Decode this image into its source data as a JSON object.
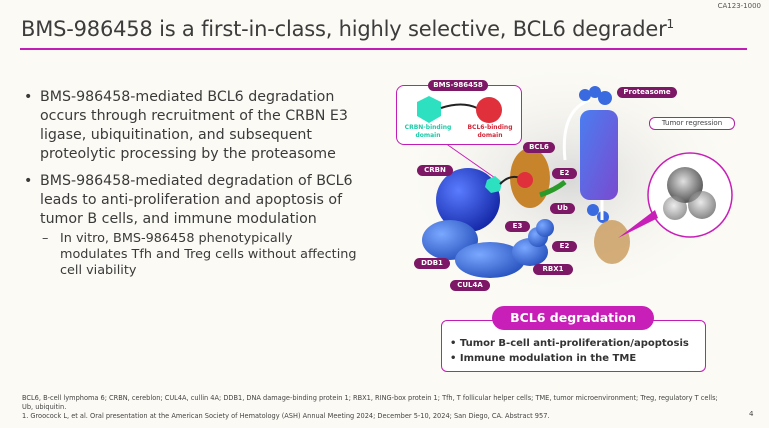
{
  "doc_code": "CA123-1000",
  "title": {
    "text": "BMS-986458 is a first-in-class, highly selective, BCL6 degrader",
    "superscript": "1"
  },
  "bullets": [
    {
      "text": "BMS-986458-mediated BCL6 degradation occurs through recruitment of the CRBN E3 ligase, ubiquitination, and subsequent proteolytic processing by the proteasome",
      "sub": []
    },
    {
      "text": "BMS-986458-mediated degradation of BCL6 leads to anti-proliferation and apoptosis of tumor B cells, and immune modulation",
      "sub": [
        "In vitro, BMS-986458 phenotypically modulates Tfh and Treg cells without affecting cell viability"
      ]
    }
  ],
  "diagram": {
    "molecule_label": "BMS-986458",
    "crbn_domain": "CRBN-binding domain",
    "bcl6_domain": "BCL6-binding domain",
    "labels": {
      "proteasome": "Proteasome",
      "tumor_regression": "Tumor regression",
      "bcl6": "BCL6",
      "crbn": "CRBN",
      "e2_top": "E2",
      "ub": "Ub",
      "e3": "E3",
      "e2_bottom": "E2",
      "rbx1": "RBX1",
      "ddb1": "DDB1",
      "cul4a": "CUL4A"
    },
    "colors": {
      "accent": "#c81fb8",
      "label_bg": "#7d1866",
      "crbn_domain": "#2de0c0",
      "bcl6_domain": "#e0303c"
    }
  },
  "degradation": {
    "heading": "BCL6 degradation",
    "items": [
      "Tumor B-cell anti-proliferation/apoptosis",
      "Immune modulation in the TME"
    ]
  },
  "footnotes": {
    "abbreviations": "BCL6, B-cell lymphoma 6; CRBN, cereblon; CUL4A, cullin 4A; DDB1, DNA damage-binding protein 1; RBX1, RING-box protein 1; Tfh, T follicular helper cells; TME, tumor microenvironment; Treg, regulatory T cells; Ub, ubiquitin.",
    "reference": "1. Groocock L, et al. Oral presentation at the American Society of Hematology (ASH) Annual Meeting 2024; December 5-10, 2024; San Diego, CA. Abstract 957."
  },
  "page_number": "4"
}
